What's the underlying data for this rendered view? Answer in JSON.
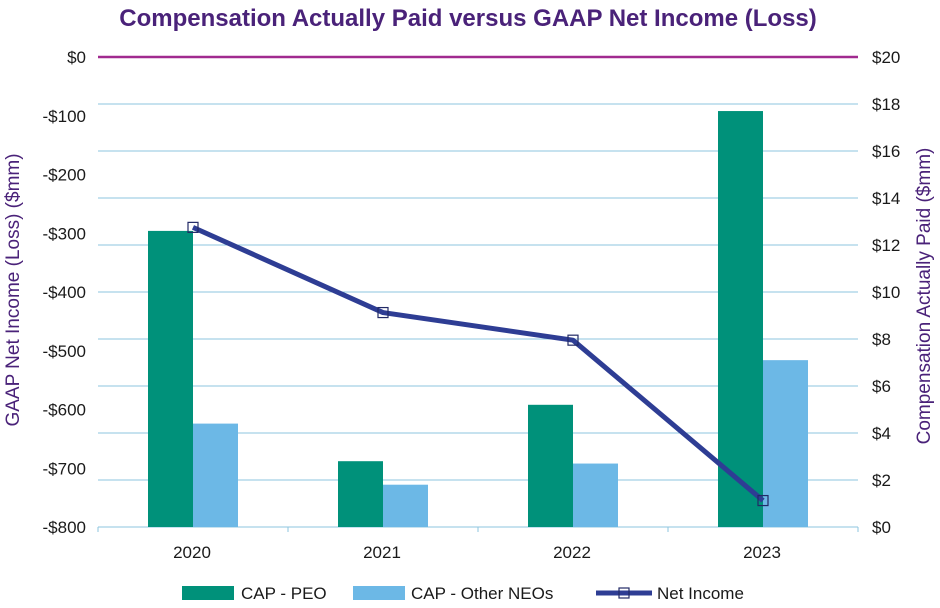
{
  "colors": {
    "title": "#4a2279",
    "peo": "#00917a",
    "neo": "#6cb8e6",
    "line": "#2e3d94",
    "grid": "#8ec6df",
    "zero_line": "#a12a8f"
  },
  "chart_data": {
    "type": "bar",
    "title": "Compensation Actually Paid versus GAAP Net Income (Loss)",
    "categories": [
      "2020",
      "2021",
      "2022",
      "2023"
    ],
    "y_left": {
      "label": "GAAP Net Income (Loss) ($mm)",
      "range": [
        -800,
        0
      ],
      "ticks": [
        0,
        -100,
        -200,
        -300,
        -400,
        -500,
        -600,
        -700,
        -800
      ],
      "tick_labels": [
        "$0",
        "-$100",
        "-$200",
        "-$300",
        "-$400",
        "-$500",
        "-$600",
        "-$700",
        "-$800"
      ]
    },
    "y_right": {
      "label": "Compensation Actually Paid ($mm)",
      "range": [
        0,
        20
      ],
      "ticks": [
        20,
        18,
        16,
        14,
        12,
        10,
        8,
        6,
        4,
        2,
        0
      ],
      "tick_labels": [
        "$20",
        "$18",
        "$16",
        "$14",
        "$12",
        "$10",
        "$8",
        "$6",
        "$4",
        "$2",
        "$0"
      ]
    },
    "series": [
      {
        "name": "CAP - PEO",
        "type": "bar",
        "axis": "right",
        "values": [
          12.6,
          2.8,
          5.2,
          17.7
        ]
      },
      {
        "name": "CAP - Other NEOs",
        "type": "bar",
        "axis": "right",
        "values": [
          4.4,
          1.8,
          2.7,
          7.1
        ]
      },
      {
        "name": "Net Income",
        "type": "line",
        "axis": "left",
        "values": [
          -290,
          -435,
          -482,
          -755
        ]
      }
    ],
    "legend_position": "bottom",
    "grid": true
  }
}
